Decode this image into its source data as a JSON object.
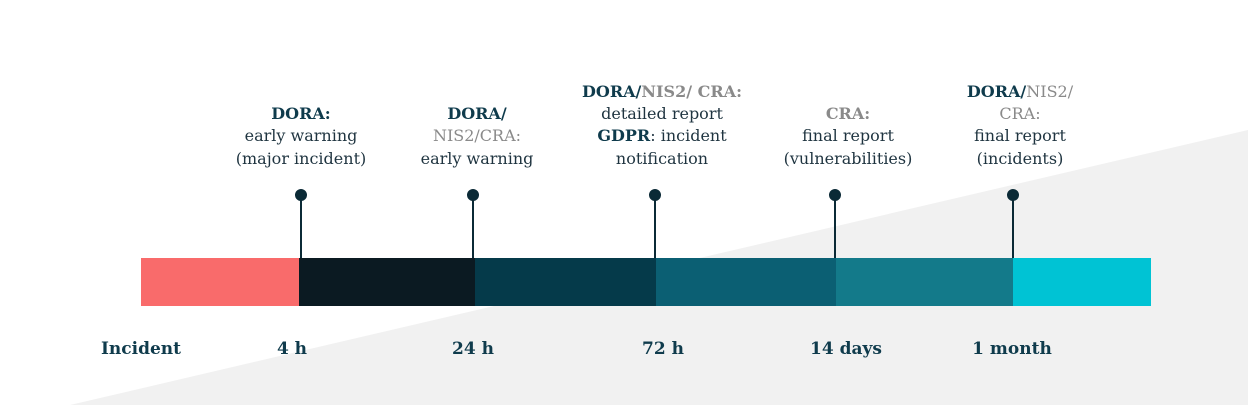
{
  "timeline": {
    "start": "Incident",
    "milestones": [
      {
        "time": "4 h",
        "lines": [
          [
            "DORA:"
          ],
          [
            "early warning"
          ],
          [
            "(major incident)"
          ]
        ]
      },
      {
        "time": "24 h",
        "lines": [
          [
            "DORA/"
          ],
          [
            "NIS2/CRA:"
          ],
          [
            "early warning"
          ]
        ]
      },
      {
        "time": "72 h",
        "lines": [
          [
            "DORA/",
            "NIS2/ CRA:"
          ],
          [
            "detailed report"
          ],
          [
            "GDPR",
            ": incident"
          ],
          [
            "notification"
          ]
        ]
      },
      {
        "time": "14 days",
        "lines": [
          [
            "CRA:"
          ],
          [
            "final report"
          ],
          [
            "(vulnerabilities)"
          ]
        ]
      },
      {
        "time": "1 month",
        "lines": [
          [
            "DORA/",
            "NIS2/"
          ],
          [
            "CRA:"
          ],
          [
            "final report"
          ],
          [
            "(incidents)"
          ]
        ]
      }
    ]
  }
}
